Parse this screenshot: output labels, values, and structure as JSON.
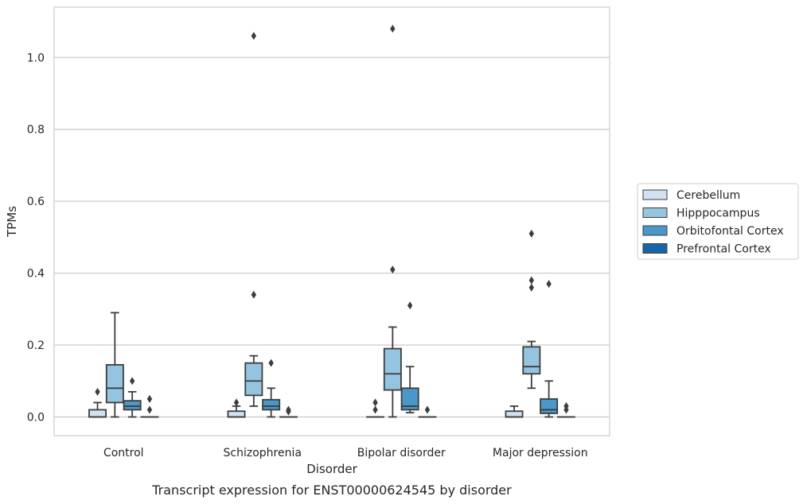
{
  "chart_data": {
    "type": "box",
    "caption": "Transcript expression for ENST00000624545 by disorder",
    "xlabel": "Disorder",
    "ylabel": "TPMs",
    "ylim": [
      -0.052,
      1.14
    ],
    "yticks": [
      0.0,
      0.2,
      0.4,
      0.6,
      0.8,
      1.0
    ],
    "ytick_labels": [
      "0.0",
      "0.2",
      "0.4",
      "0.6",
      "0.8",
      "1.0"
    ],
    "grid": "horizontal",
    "legend_position": "right",
    "categories": [
      "Control",
      "Schizophrenia",
      "Bipolar disorder",
      "Major depression"
    ],
    "series": [
      {
        "name": "Cerebellum",
        "color": "#d0e1f2",
        "boxes": [
          {
            "whislo": 0.0,
            "q1": 0.0,
            "med": 0.0,
            "q3": 0.02,
            "whishi": 0.04,
            "fliers": [
              0.07
            ]
          },
          {
            "whislo": 0.0,
            "q1": 0.0,
            "med": 0.0,
            "q3": 0.016,
            "whishi": 0.03,
            "fliers": [
              0.04
            ]
          },
          {
            "whislo": 0.0,
            "q1": 0.0,
            "med": 0.0,
            "q3": 0.0,
            "whishi": 0.0,
            "fliers": [
              0.02,
              0.04
            ]
          },
          {
            "whislo": 0.0,
            "q1": 0.0,
            "med": 0.0,
            "q3": 0.016,
            "whishi": 0.03,
            "fliers": []
          }
        ]
      },
      {
        "name": "Hipppocampus",
        "color": "#94c4df",
        "boxes": [
          {
            "whislo": 0.0,
            "q1": 0.04,
            "med": 0.08,
            "q3": 0.145,
            "whishi": 0.29,
            "fliers": []
          },
          {
            "whislo": 0.03,
            "q1": 0.06,
            "med": 0.1,
            "q3": 0.15,
            "whishi": 0.17,
            "fliers": [
              0.34,
              1.06
            ]
          },
          {
            "whislo": 0.0,
            "q1": 0.075,
            "med": 0.12,
            "q3": 0.19,
            "whishi": 0.25,
            "fliers": [
              0.41,
              1.08
            ]
          },
          {
            "whislo": 0.08,
            "q1": 0.12,
            "med": 0.14,
            "q3": 0.195,
            "whishi": 0.21,
            "fliers": [
              0.36,
              0.38,
              0.51
            ]
          }
        ]
      },
      {
        "name": "Orbitofontal Cortex",
        "color": "#4a98c9",
        "boxes": [
          {
            "whislo": 0.0,
            "q1": 0.02,
            "med": 0.03,
            "q3": 0.045,
            "whishi": 0.07,
            "fliers": [
              0.1
            ]
          },
          {
            "whislo": 0.0,
            "q1": 0.02,
            "med": 0.03,
            "q3": 0.048,
            "whishi": 0.08,
            "fliers": [
              0.15
            ]
          },
          {
            "whislo": 0.012,
            "q1": 0.02,
            "med": 0.03,
            "q3": 0.08,
            "whishi": 0.14,
            "fliers": [
              0.31
            ]
          },
          {
            "whislo": 0.0,
            "q1": 0.01,
            "med": 0.02,
            "q3": 0.05,
            "whishi": 0.1,
            "fliers": [
              0.37
            ]
          }
        ]
      },
      {
        "name": "Prefrontal Cortex",
        "color": "#1764ab",
        "boxes": [
          {
            "whislo": 0.0,
            "q1": 0.0,
            "med": 0.0,
            "q3": 0.0,
            "whishi": 0.0,
            "fliers": [
              0.02,
              0.05
            ]
          },
          {
            "whislo": 0.0,
            "q1": 0.0,
            "med": 0.0,
            "q3": 0.0,
            "whishi": 0.0,
            "fliers": [
              0.015,
              0.02
            ]
          },
          {
            "whislo": 0.0,
            "q1": 0.0,
            "med": 0.0,
            "q3": 0.0,
            "whishi": 0.0,
            "fliers": [
              0.02
            ]
          },
          {
            "whislo": 0.0,
            "q1": 0.0,
            "med": 0.0,
            "q3": 0.0,
            "whishi": 0.0,
            "fliers": [
              0.02,
              0.03
            ]
          }
        ]
      }
    ]
  }
}
